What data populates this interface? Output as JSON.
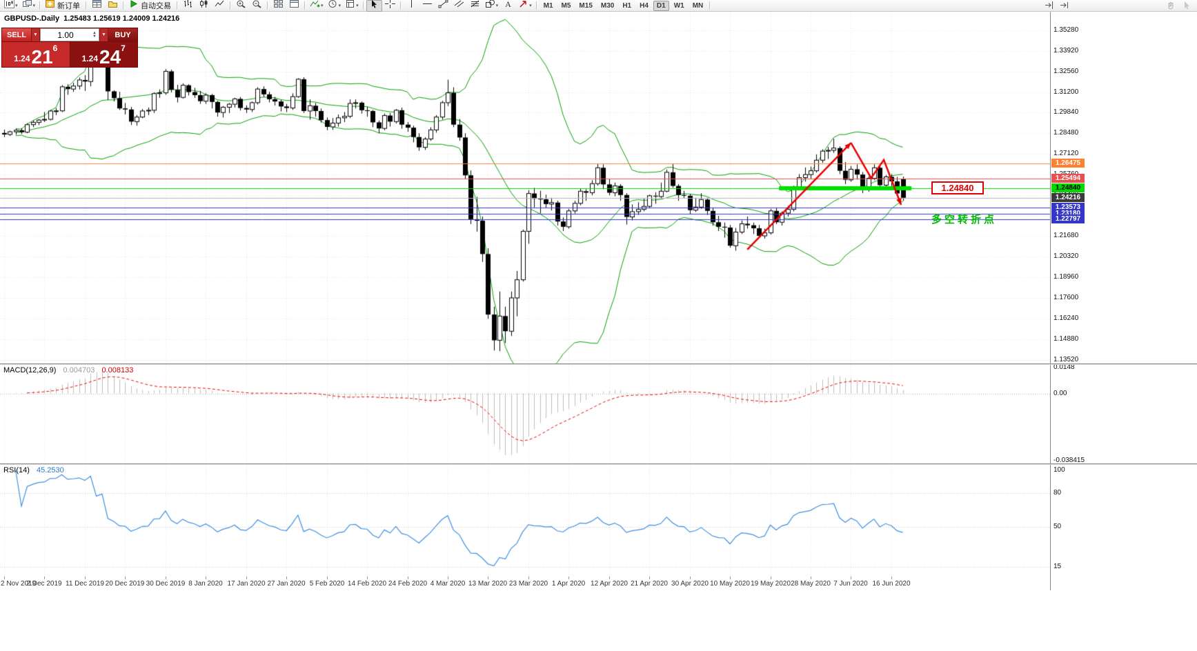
{
  "toolbar": {
    "new_order_label": "新订单",
    "autotrade_label": "自动交易",
    "timeframes": [
      "M1",
      "M5",
      "M15",
      "M30",
      "H1",
      "H4",
      "D1",
      "W1",
      "MN"
    ],
    "active_timeframe": "D1",
    "items": [
      {
        "icon": "new-chart-icon",
        "caret": true
      },
      {
        "icon": "profiles-icon",
        "caret": true
      },
      {
        "sep": true
      },
      {
        "icon": "new-order-icon",
        "label": "新订单"
      },
      {
        "sep": true
      },
      {
        "icon": "market-watch-icon"
      },
      {
        "icon": "navigator-icon"
      },
      {
        "sep": true
      },
      {
        "icon": "autotrade-icon",
        "label": "自动交易"
      },
      {
        "sep": true
      },
      {
        "icon": "bar-chart-icon"
      },
      {
        "icon": "candle-chart-icon"
      },
      {
        "icon": "line-chart-icon"
      },
      {
        "sep": true
      },
      {
        "icon": "zoom-in-icon"
      },
      {
        "icon": "zoom-out-icon"
      },
      {
        "sep": true
      },
      {
        "icon": "tile-windows-icon"
      },
      {
        "icon": "auto-arrange-icon"
      },
      {
        "sep": true
      },
      {
        "icon": "indicators-icon",
        "caret": true
      },
      {
        "icon": "periods-icon",
        "caret": true
      },
      {
        "icon": "templates-icon",
        "caret": true
      },
      {
        "sep": true
      },
      {
        "icon": "cursor-icon",
        "active": true
      },
      {
        "icon": "crosshair-icon"
      },
      {
        "sep": true
      },
      {
        "icon": "vertical-line-icon"
      },
      {
        "icon": "horizontal-line-icon"
      },
      {
        "icon": "trendline-icon"
      },
      {
        "icon": "channel-icon"
      },
      {
        "icon": "fibonacci-icon"
      },
      {
        "icon": "shapes-icon",
        "caret": true
      },
      {
        "icon": "text-icon"
      },
      {
        "icon": "arrow-tools-icon",
        "caret": true
      },
      {
        "sep": true
      },
      {
        "tf": "M1"
      },
      {
        "tf": "M5"
      },
      {
        "tf": "M15"
      },
      {
        "tf": "M30"
      },
      {
        "tf": "H1"
      },
      {
        "tf": "H4"
      },
      {
        "tf": "D1"
      },
      {
        "tf": "W1"
      },
      {
        "tf": "MN"
      },
      {
        "sep": true
      }
    ],
    "right_items": [
      {
        "icon": "chart-shift-icon"
      },
      {
        "icon": "auto-scroll-icon"
      }
    ],
    "corner_items": [
      {
        "icon": "hand-cursor-icon"
      },
      {
        "icon": "arrow-cursor-icon"
      }
    ]
  },
  "chart": {
    "title": "GBPUSD-.Daily",
    "ohlc_text": "1.25483 1.25619 1.24009 1.24216",
    "open": "1.25483",
    "high": "1.25619",
    "low": "1.24009",
    "close": "1.24216"
  },
  "trade_panel": {
    "sell_label": "SELL",
    "buy_label": "BUY",
    "volume": "1.00",
    "sell_price_big": "1.24",
    "sell_price_pips": "21",
    "sell_price_pt": "6",
    "buy_price_big": "1.24",
    "buy_price_pips": "24",
    "buy_price_pt": "7"
  },
  "price_axis": {
    "labels": [
      "1.35280",
      "1.33920",
      "1.32560",
      "1.31200",
      "1.29840",
      "1.28480",
      "1.27120",
      "1.25760",
      "1.24400",
      "1.23040",
      "1.21680",
      "1.20320",
      "1.18960",
      "1.17600",
      "1.16240",
      "1.14880",
      "1.13520"
    ]
  },
  "levels": [
    {
      "price": 1.26475,
      "label": "1.26475",
      "color": "#FF8030",
      "text": "light"
    },
    {
      "price": 1.25494,
      "label": "1.25494",
      "color": "#E85050",
      "text": "light"
    },
    {
      "price": 1.2484,
      "label": "1.24840",
      "color": "#00D800",
      "text": "dark"
    },
    {
      "price": 1.24216,
      "label": "1.24216",
      "color": "#3a3a3a",
      "text": "light",
      "current": true
    },
    {
      "price": 1.23573,
      "label": "1.23573",
      "color": "#3535C8",
      "text": "light"
    },
    {
      "price": 1.2318,
      "label": "1.23180",
      "color": "#3535C8",
      "text": "light"
    },
    {
      "price": 1.22797,
      "label": "1.22797",
      "color": "#3535C8",
      "text": "light"
    }
  ],
  "annotations": {
    "level_label": "1.24840",
    "note_text": "多空转折点",
    "highlight_line": {
      "price": 1.2484,
      "i1": 134.5,
      "i2": 157.5,
      "color": "#00E000"
    },
    "trend_arrow": {
      "i1": 129,
      "p1": 1.208,
      "i2": 147,
      "p2": 1.2785,
      "color": "#E60000"
    },
    "zigzag_arrow": {
      "points": [
        [
          147,
          1.2785
        ],
        [
          150.5,
          1.2552
        ],
        [
          152.7,
          1.2672
        ],
        [
          155.7,
          1.2375
        ]
      ],
      "color": "#E60000"
    }
  },
  "macd": {
    "label": "MACD(12,26,9)",
    "value_main": "0.004703",
    "value_signal": "0.008133",
    "axis": [
      "0.0148",
      "0.00",
      "-0.038415"
    ],
    "axis_values": [
      0.0148,
      0,
      -0.038415
    ]
  },
  "rsi": {
    "label": "RSI(14)",
    "value": "45.2530",
    "axis": [
      "100",
      "80",
      "50",
      "15"
    ],
    "axis_values": [
      100,
      80,
      50,
      15
    ],
    "levels": [
      80,
      50,
      15
    ]
  },
  "chart_data": {
    "type": "candlestick",
    "symbol": "GBPUSD-",
    "timeframe": "Daily",
    "ylim": [
      1.1352,
      1.3615
    ],
    "x_tick_labels": [
      "2 Nov 2019",
      "2 Dec 2019",
      "11 Dec 2019",
      "20 Dec 2019",
      "30 Dec 2019",
      "8 Jan 2020",
      "17 Jan 2020",
      "27 Jan 2020",
      "5 Feb 2020",
      "14 Feb 2020",
      "24 Feb 2020",
      "4 Mar 2020",
      "13 Mar 2020",
      "23 Mar 2020",
      "1 Apr 2020",
      "12 Apr 2020",
      "21 Apr 2020",
      "30 Apr 2020",
      "10 May 2020",
      "19 May 2020",
      "28 May 2020",
      "7 Jun 2020",
      "16 Jun 2020"
    ],
    "indicators": {
      "bollinger": {
        "period": 20,
        "deviation": 2
      },
      "macd": {
        "fast": 12,
        "slow": 26,
        "signal": 9
      },
      "rsi": {
        "period": 14
      }
    },
    "candles": [
      [
        1.285,
        1.2872,
        1.2823,
        1.284
      ],
      [
        1.284,
        1.2865,
        1.283,
        1.2858
      ],
      [
        1.2858,
        1.2878,
        1.2838,
        1.2868
      ],
      [
        1.2868,
        1.2882,
        1.2843,
        1.2855
      ],
      [
        1.2855,
        1.2914,
        1.2848,
        1.2905
      ],
      [
        1.2905,
        1.2932,
        1.2888,
        1.292
      ],
      [
        1.292,
        1.2942,
        1.2902,
        1.2935
      ],
      [
        1.2935,
        1.2988,
        1.2922,
        1.294
      ],
      [
        1.294,
        1.3002,
        1.2933,
        1.2995
      ],
      [
        1.2995,
        1.3014,
        1.2968,
        1.2996
      ],
      [
        1.2996,
        1.3166,
        1.2988,
        1.3155
      ],
      [
        1.3155,
        1.3172,
        1.3102,
        1.314
      ],
      [
        1.314,
        1.3182,
        1.3122,
        1.316
      ],
      [
        1.316,
        1.3216,
        1.3138,
        1.32
      ],
      [
        1.32,
        1.3232,
        1.3128,
        1.319
      ],
      [
        1.319,
        1.3515,
        1.3158,
        1.348
      ],
      [
        1.348,
        1.3502,
        1.3298,
        1.3335
      ],
      [
        1.3335,
        1.3425,
        1.3318,
        1.3398
      ],
      [
        1.3398,
        1.3412,
        1.3068,
        1.3125
      ],
      [
        1.3125,
        1.3132,
        1.3058,
        1.308
      ],
      [
        1.308,
        1.3122,
        1.3002,
        1.3012
      ],
      [
        1.3012,
        1.3048,
        1.2972,
        1.3005
      ],
      [
        1.3005,
        1.3022,
        1.2902,
        1.2925
      ],
      [
        1.2925,
        1.2968,
        1.2898,
        1.2955
      ],
      [
        1.2955,
        1.3008,
        1.2948,
        1.2995
      ],
      [
        1.2995,
        1.3018,
        1.2968,
        1.3
      ],
      [
        1.3,
        1.3118,
        1.2982,
        1.311
      ],
      [
        1.311,
        1.3138,
        1.3082,
        1.3115
      ],
      [
        1.3115,
        1.3272,
        1.3102,
        1.3257
      ],
      [
        1.3257,
        1.3268,
        1.3118,
        1.3135
      ],
      [
        1.3135,
        1.3168,
        1.3052,
        1.3085
      ],
      [
        1.3085,
        1.3178,
        1.3078,
        1.3165
      ],
      [
        1.3165,
        1.3172,
        1.3098,
        1.312
      ],
      [
        1.312,
        1.3148,
        1.3082,
        1.31
      ],
      [
        1.31,
        1.3128,
        1.3042,
        1.306
      ],
      [
        1.306,
        1.3112,
        1.3042,
        1.31
      ],
      [
        1.31,
        1.3108,
        1.3012,
        1.3055
      ],
      [
        1.3055,
        1.3062,
        1.2958,
        1.2985
      ],
      [
        1.2985,
        1.3028,
        1.2952,
        1.302
      ],
      [
        1.302,
        1.3048,
        1.2982,
        1.304
      ],
      [
        1.304,
        1.3082,
        1.3018,
        1.3075
      ],
      [
        1.3075,
        1.3088,
        1.2998,
        1.3015
      ],
      [
        1.3015,
        1.3032,
        1.2982,
        1.3005
      ],
      [
        1.3005,
        1.3058,
        1.2988,
        1.305
      ],
      [
        1.305,
        1.3152,
        1.3038,
        1.314
      ],
      [
        1.314,
        1.3158,
        1.3088,
        1.3105
      ],
      [
        1.3105,
        1.3122,
        1.3052,
        1.3073
      ],
      [
        1.3073,
        1.3088,
        1.3032,
        1.3058
      ],
      [
        1.3058,
        1.3068,
        1.2992,
        1.3025
      ],
      [
        1.3025,
        1.3042,
        1.2988,
        1.3015
      ],
      [
        1.3015,
        1.3112,
        1.3002,
        1.309
      ],
      [
        1.309,
        1.3212,
        1.3082,
        1.3205
      ],
      [
        1.3205,
        1.3218,
        1.2982,
        1.2995
      ],
      [
        1.2995,
        1.3072,
        1.2938,
        1.303
      ],
      [
        1.303,
        1.3048,
        1.2958,
        1.2995
      ],
      [
        1.2995,
        1.3012,
        1.2918,
        1.2935
      ],
      [
        1.2935,
        1.2952,
        1.2868,
        1.289
      ],
      [
        1.289,
        1.2948,
        1.287,
        1.2915
      ],
      [
        1.2915,
        1.2972,
        1.2892,
        1.295
      ],
      [
        1.295,
        1.2988,
        1.2922,
        1.296
      ],
      [
        1.296,
        1.3072,
        1.2948,
        1.3045
      ],
      [
        1.3045,
        1.3072,
        1.3012,
        1.305
      ],
      [
        1.305,
        1.3058,
        1.2978,
        1.3
      ],
      [
        1.3,
        1.3022,
        1.2958,
        1.2995
      ],
      [
        1.2995,
        1.3002,
        1.2888,
        1.292
      ],
      [
        1.292,
        1.2932,
        1.2848,
        1.288
      ],
      [
        1.288,
        1.2978,
        1.2868,
        1.2965
      ],
      [
        1.2965,
        1.2982,
        1.2892,
        1.2925
      ],
      [
        1.2925,
        1.3008,
        1.2912,
        1.3
      ],
      [
        1.3,
        1.3018,
        1.2878,
        1.2905
      ],
      [
        1.2905,
        1.2922,
        1.2858,
        1.2885
      ],
      [
        1.2885,
        1.2898,
        1.2788,
        1.2823
      ],
      [
        1.2823,
        1.2848,
        1.2732,
        1.2755
      ],
      [
        1.2755,
        1.2822,
        1.2738,
        1.281
      ],
      [
        1.281,
        1.2888,
        1.2798,
        1.287
      ],
      [
        1.287,
        1.2968,
        1.2852,
        1.2955
      ],
      [
        1.2955,
        1.3062,
        1.2938,
        1.305
      ],
      [
        1.305,
        1.3202,
        1.3028,
        1.3115
      ],
      [
        1.3115,
        1.3152,
        1.2888,
        1.2905
      ],
      [
        1.2905,
        1.2942,
        1.2798,
        1.282
      ],
      [
        1.282,
        1.2848,
        1.2548,
        1.257
      ],
      [
        1.257,
        1.2602,
        1.2248,
        1.228
      ],
      [
        1.228,
        1.2428,
        1.2198,
        1.227
      ],
      [
        1.227,
        1.2298,
        1.1998,
        1.205
      ],
      [
        1.205,
        1.2088,
        1.1622,
        1.165
      ],
      [
        1.165,
        1.1702,
        1.1412,
        1.148
      ],
      [
        1.148,
        1.1802,
        1.1408,
        1.164
      ],
      [
        1.164,
        1.1702,
        1.1462,
        1.154
      ],
      [
        1.154,
        1.1802,
        1.1508,
        1.176
      ],
      [
        1.176,
        1.1938,
        1.1638,
        1.188
      ],
      [
        1.188,
        1.2212,
        1.1868,
        1.22
      ],
      [
        1.22,
        1.2472,
        1.2118,
        1.245
      ],
      [
        1.245,
        1.2488,
        1.2358,
        1.2415
      ],
      [
        1.2415,
        1.2468,
        1.2318,
        1.2412
      ],
      [
        1.2412,
        1.2442,
        1.2352,
        1.238
      ],
      [
        1.238,
        1.2422,
        1.2338,
        1.239
      ],
      [
        1.239,
        1.2402,
        1.2238,
        1.2265
      ],
      [
        1.2265,
        1.2292,
        1.2202,
        1.223
      ],
      [
        1.223,
        1.2348,
        1.2218,
        1.2335
      ],
      [
        1.2335,
        1.2402,
        1.2318,
        1.2385
      ],
      [
        1.2385,
        1.2482,
        1.2372,
        1.2465
      ],
      [
        1.2465,
        1.2478,
        1.2402,
        1.2455
      ],
      [
        1.2455,
        1.2538,
        1.2438,
        1.2515
      ],
      [
        1.2515,
        1.2648,
        1.2502,
        1.262
      ],
      [
        1.262,
        1.2642,
        1.2478,
        1.251
      ],
      [
        1.251,
        1.2548,
        1.2438,
        1.2455
      ],
      [
        1.2455,
        1.2522,
        1.2432,
        1.25
      ],
      [
        1.25,
        1.2512,
        1.2402,
        1.244
      ],
      [
        1.244,
        1.2452,
        1.2245,
        1.2295
      ],
      [
        1.2295,
        1.2378,
        1.2272,
        1.233
      ],
      [
        1.233,
        1.2392,
        1.2308,
        1.2345
      ],
      [
        1.2345,
        1.2418,
        1.2332,
        1.2365
      ],
      [
        1.2365,
        1.2442,
        1.2352,
        1.2435
      ],
      [
        1.2435,
        1.2458,
        1.2382,
        1.243
      ],
      [
        1.243,
        1.2522,
        1.2418,
        1.2465
      ],
      [
        1.2465,
        1.2608,
        1.2458,
        1.259
      ],
      [
        1.259,
        1.2648,
        1.2488,
        1.25
      ],
      [
        1.25,
        1.2512,
        1.2402,
        1.244
      ],
      [
        1.244,
        1.2468,
        1.2418,
        1.2435
      ],
      [
        1.2435,
        1.2448,
        1.2312,
        1.234
      ],
      [
        1.234,
        1.2422,
        1.2328,
        1.236
      ],
      [
        1.236,
        1.2452,
        1.2348,
        1.241
      ],
      [
        1.241,
        1.2422,
        1.2308,
        1.2335
      ],
      [
        1.2335,
        1.2358,
        1.2238,
        1.226
      ],
      [
        1.226,
        1.2302,
        1.2202,
        1.223
      ],
      [
        1.223,
        1.2258,
        1.2158,
        1.2225
      ],
      [
        1.2225,
        1.2242,
        1.2092,
        1.2105
      ],
      [
        1.2105,
        1.2222,
        1.2072,
        1.2195
      ],
      [
        1.2195,
        1.2272,
        1.2182,
        1.225
      ],
      [
        1.225,
        1.2298,
        1.2218,
        1.224
      ],
      [
        1.224,
        1.2258,
        1.2182,
        1.222
      ],
      [
        1.222,
        1.2242,
        1.2158,
        1.217
      ],
      [
        1.217,
        1.2218,
        1.2152,
        1.219
      ],
      [
        1.219,
        1.2348,
        1.2178,
        1.2335
      ],
      [
        1.2335,
        1.2352,
        1.2248,
        1.226
      ],
      [
        1.226,
        1.2332,
        1.2238,
        1.232
      ],
      [
        1.232,
        1.2368,
        1.2298,
        1.2345
      ],
      [
        1.2345,
        1.2502,
        1.2332,
        1.249
      ],
      [
        1.249,
        1.2578,
        1.2478,
        1.2555
      ],
      [
        1.2555,
        1.2622,
        1.2528,
        1.2575
      ],
      [
        1.2575,
        1.2628,
        1.2548,
        1.26
      ],
      [
        1.26,
        1.2708,
        1.2588,
        1.267
      ],
      [
        1.267,
        1.2742,
        1.2652,
        1.273
      ],
      [
        1.273,
        1.2758,
        1.2678,
        1.2735
      ],
      [
        1.2735,
        1.2812,
        1.2718,
        1.275
      ],
      [
        1.275,
        1.2762,
        1.2578,
        1.26
      ],
      [
        1.26,
        1.2658,
        1.2512,
        1.254
      ],
      [
        1.254,
        1.2632,
        1.2528,
        1.261
      ],
      [
        1.261,
        1.2642,
        1.2542,
        1.2575
      ],
      [
        1.2575,
        1.2592,
        1.2452,
        1.2475
      ],
      [
        1.2475,
        1.2562,
        1.2462,
        1.255
      ],
      [
        1.255,
        1.2642,
        1.2538,
        1.262
      ],
      [
        1.262,
        1.2632,
        1.2478,
        1.2505
      ],
      [
        1.2505,
        1.2572,
        1.2488,
        1.256
      ],
      [
        1.256,
        1.2578,
        1.2498,
        1.253
      ],
      [
        1.253,
        1.256,
        1.2435,
        1.245
      ],
      [
        1.25483,
        1.25619,
        1.24009,
        1.24216
      ]
    ]
  }
}
